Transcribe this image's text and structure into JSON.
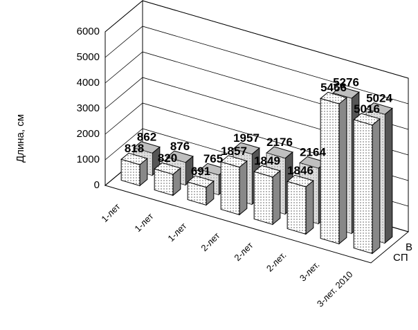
{
  "chart_data": {
    "type": "bar3d",
    "y_label": "Длина, см",
    "categories": [
      "1-лет",
      "1-лет",
      "1-лет",
      "2-лет",
      "2-лет",
      "2-лет.",
      "3-лет.",
      "3-лет. 2010"
    ],
    "series": [
      {
        "name": "СП",
        "color": "#ffffff",
        "values": [
          818,
          820,
          691,
          1857,
          1849,
          1846,
          5466,
          5016
        ]
      },
      {
        "name": "В",
        "color": "#bfbfbf",
        "values": [
          862,
          876,
          765,
          1957,
          2176,
          2164,
          5276,
          5024
        ]
      }
    ],
    "ylim": [
      0,
      6000
    ],
    "yticks": [
      0,
      1000,
      2000,
      3000,
      4000,
      5000,
      6000
    ],
    "grid": true
  }
}
